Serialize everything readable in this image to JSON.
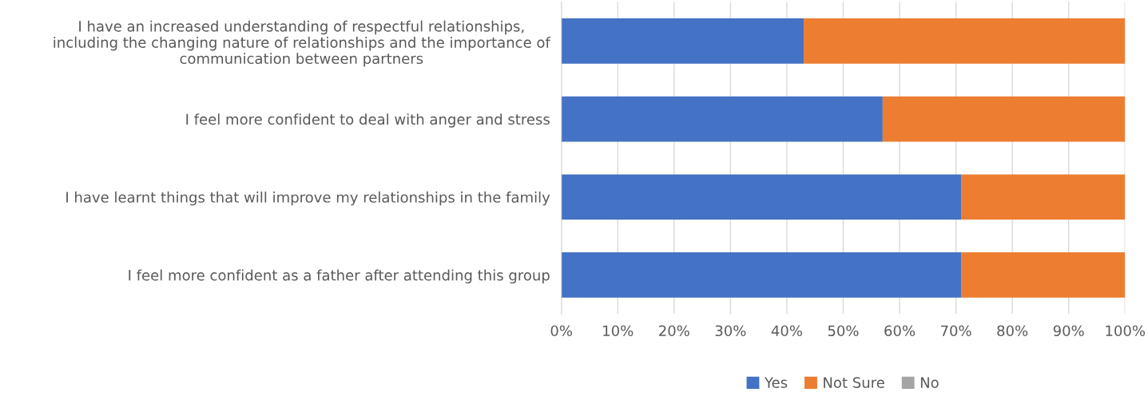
{
  "chart_data": {
    "type": "bar",
    "orientation": "horizontal",
    "stacked": true,
    "categories": [
      "I have an increased understanding of respectful relationships,\nincluding the changing nature of relationships and the importance of\ncommunication between partners",
      "I feel more confident to deal with anger and stress",
      "I have learnt things that will improve my relationships in the family",
      "I feel more confident as a father after attending this group"
    ],
    "series": [
      {
        "name": "Yes",
        "color": "#4472c4",
        "values": [
          43,
          57,
          71,
          71
        ]
      },
      {
        "name": "Not Sure",
        "color": "#ed7d31",
        "values": [
          57,
          43,
          29,
          29
        ]
      },
      {
        "name": "No",
        "color": "#a5a5a5",
        "values": [
          0,
          0,
          0,
          0
        ]
      }
    ],
    "xlim": [
      0,
      100
    ],
    "xticks": [
      {
        "value": 0,
        "label": "0%"
      },
      {
        "value": 10,
        "label": "10%"
      },
      {
        "value": 20,
        "label": "20%"
      },
      {
        "value": 30,
        "label": "30%"
      },
      {
        "value": 40,
        "label": "40%"
      },
      {
        "value": 50,
        "label": "50%"
      },
      {
        "value": 60,
        "label": "60%"
      },
      {
        "value": 70,
        "label": "70%"
      },
      {
        "value": 80,
        "label": "80%"
      },
      {
        "value": 90,
        "label": "90%"
      },
      {
        "value": 100,
        "label": "100%"
      }
    ],
    "grid": "x",
    "legend": "bottom"
  }
}
